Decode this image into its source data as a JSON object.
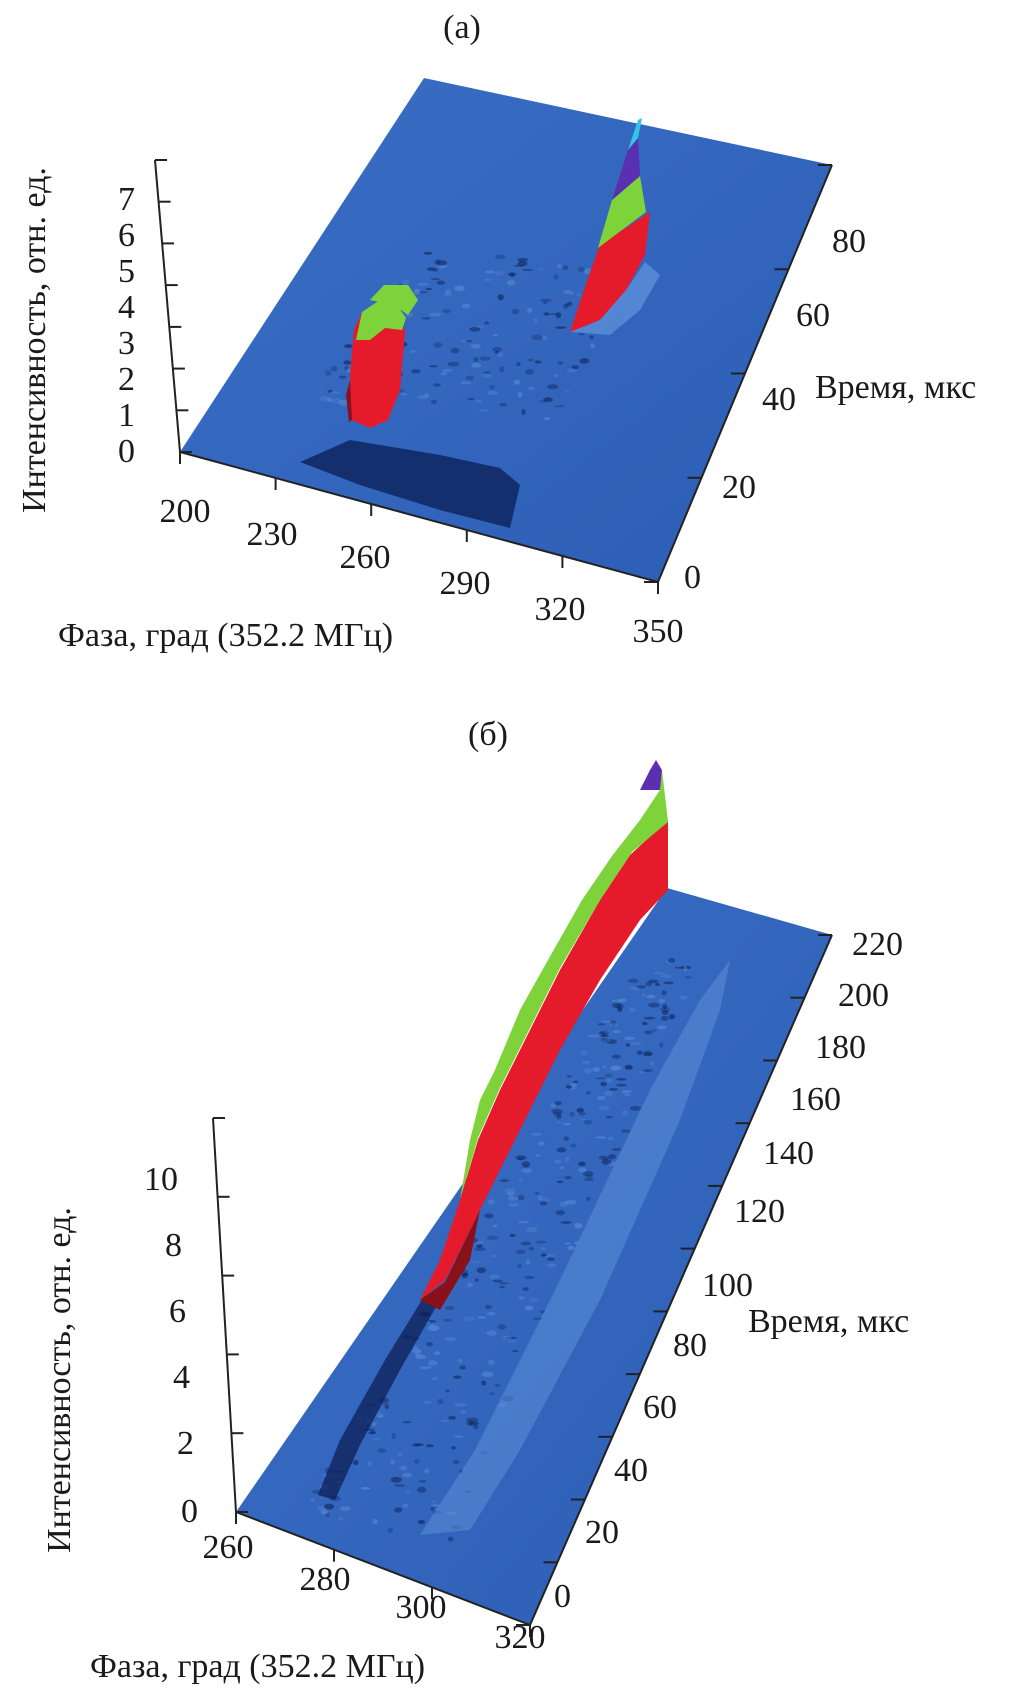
{
  "colors": {
    "surface": "#2e62b8",
    "surface_light": "#5b8fd8",
    "shadow": "#0d1f55",
    "band_red": "#e51b2b",
    "band_green": "#7fd33a",
    "band_violet": "#5a2fb0",
    "band_cyan": "#33c4e8"
  },
  "chart_data": [
    {
      "type": "surface3d",
      "title": "(а)",
      "xlabel": "Фаза, град (352.2 МГц)",
      "ylabel": "Время, мкс",
      "zlabel": "Интенсивность, отн. ед.",
      "x_ticks": [
        "200",
        "230",
        "260",
        "290",
        "320",
        "350"
      ],
      "y_ticks": [
        "0",
        "20",
        "40",
        "60",
        "80"
      ],
      "z_ticks": [
        "0",
        "1",
        "2",
        "3",
        "4",
        "5",
        "6",
        "7"
      ],
      "x_range": [
        200,
        350
      ],
      "y_range": [
        0,
        95
      ],
      "z_range": [
        0,
        7
      ],
      "peaks": [
        {
          "phase": 255,
          "time": 40,
          "height": 4.2
        },
        {
          "phase": 322,
          "time": 80,
          "height": 7.0
        }
      ]
    },
    {
      "type": "surface3d",
      "title": "(б)",
      "xlabel": "Фаза, град (352.2 МГц)",
      "ylabel": "Время, мкс",
      "zlabel": "Интенсивность, отн. ед.",
      "x_ticks": [
        "260",
        "280",
        "300",
        "320"
      ],
      "y_ticks": [
        "0",
        "20",
        "40",
        "60",
        "80",
        "100",
        "120",
        "140",
        "160",
        "180",
        "200",
        "220"
      ],
      "z_ticks": [
        "0",
        "2",
        "4",
        "6",
        "8",
        "10"
      ],
      "x_range": [
        260,
        320
      ],
      "y_range": [
        0,
        225
      ],
      "z_range": [
        0,
        11
      ],
      "ridge": {
        "phase": 285,
        "time_start": 55,
        "time_end": 225,
        "height_start": 0.5,
        "height_end": 11
      }
    }
  ]
}
